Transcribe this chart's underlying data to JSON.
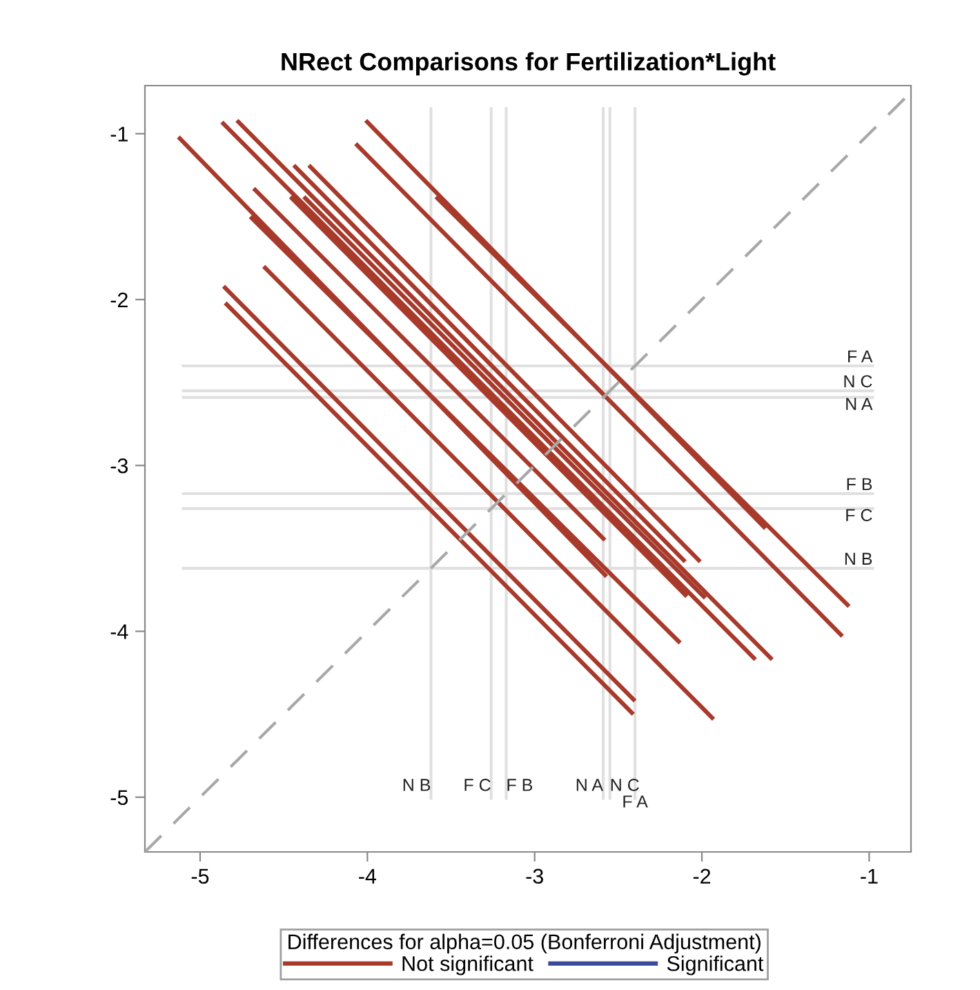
{
  "chart_data": {
    "type": "line",
    "title": "NRect Comparisons for Fertilization*Light",
    "legend_title": "Differences for alpha=0.05 (Bonferroni Adjustment)",
    "legend": "bottom",
    "grid": false,
    "marker": "none",
    "xlim": [
      -5.33,
      -0.75
    ],
    "ylim": [
      -5.33,
      -0.71
    ],
    "xticks": [
      -5,
      -4,
      -3,
      -2,
      -1
    ],
    "yticks": [
      -1,
      -2,
      -3,
      -4,
      -5
    ],
    "series": [
      {
        "name": "Not significant",
        "color": "#a83a2c",
        "line_style": "solid",
        "x": [
          -5.13,
          -2.57,
          null,
          -4.87,
          -1.68,
          null,
          -4.78,
          -1.58,
          null,
          -4.01,
          -1.62,
          null,
          -4.07,
          -1.16,
          null,
          -4.44,
          -2.1,
          null,
          -4.35,
          -2.01,
          null,
          -4.68,
          -2.58,
          null,
          -4.46,
          -2.09,
          null,
          -4.38,
          -1.98,
          null,
          -4.7,
          -2.13,
          null,
          -3.59,
          -1.12,
          null,
          -4.62,
          -1.93,
          null,
          -4.86,
          -2.4,
          null,
          -4.85,
          -2.41
        ],
        "values": [
          -1.02,
          -3.67,
          null,
          -0.93,
          -4.17,
          null,
          -0.92,
          -4.17,
          null,
          -0.92,
          -3.38,
          null,
          -1.06,
          -4.03,
          null,
          -1.19,
          -3.58,
          null,
          -1.19,
          -3.58,
          null,
          -1.33,
          -3.45,
          null,
          -1.38,
          -3.79,
          null,
          -1.38,
          -3.8,
          null,
          -1.5,
          -4.07,
          null,
          -1.38,
          -3.85,
          null,
          -1.8,
          -4.53,
          null,
          -1.92,
          -4.42,
          null,
          -2.02,
          -4.5
        ]
      },
      {
        "name": "Significant",
        "color": "#3a4a96",
        "line_style": "solid"
      },
      {
        "color": "#a8a8a8",
        "line_style": "dashed",
        "x": [
          -5.33,
          -0.75
        ],
        "values": [
          -5.33,
          -0.75
        ]
      }
    ],
    "ref_lines": [
      {
        "axis": "x",
        "value": -3.62,
        "label": "N B",
        "color": "#e0e0e0"
      },
      {
        "axis": "x",
        "value": -3.26,
        "label": "F C",
        "color": "#e0e0e0"
      },
      {
        "axis": "x",
        "value": -3.17,
        "label": "F B",
        "color": "#e0e0e0"
      },
      {
        "axis": "x",
        "value": -2.59,
        "label": "N A",
        "color": "#e0e0e0"
      },
      {
        "axis": "x",
        "value": -2.55,
        "label": "N C",
        "color": "#e0e0e0"
      },
      {
        "axis": "x",
        "value": -2.4,
        "label": "F A",
        "color": "#e0e0e0"
      },
      {
        "axis": "y",
        "value": -2.4,
        "label": "F A",
        "color": "#e0e0e0"
      },
      {
        "axis": "y",
        "value": -2.55,
        "label": "N C",
        "color": "#e0e0e0"
      },
      {
        "axis": "y",
        "value": -2.59,
        "label": "N A",
        "color": "#e0e0e0"
      },
      {
        "axis": "y",
        "value": -3.17,
        "label": "F B",
        "color": "#e0e0e0"
      },
      {
        "axis": "y",
        "value": -3.26,
        "label": "F C",
        "color": "#e0e0e0"
      },
      {
        "axis": "y",
        "value": -3.62,
        "label": "N B",
        "color": "#e0e0e0"
      }
    ]
  }
}
